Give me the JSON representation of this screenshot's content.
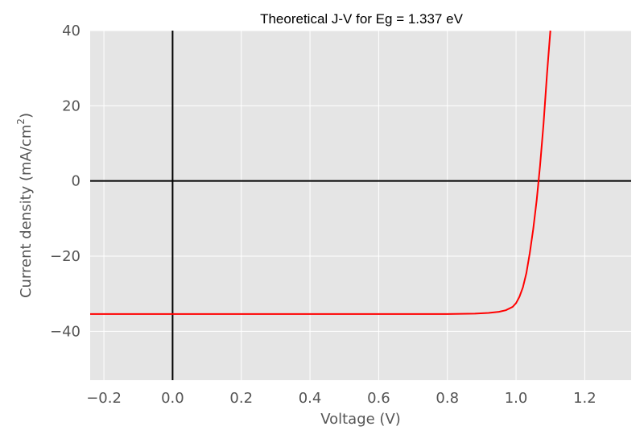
{
  "chart_data": {
    "type": "line",
    "title": "Theoretical J-V for Eg = 1.337 eV",
    "xlabel": "Voltage (V)",
    "ylabel_main": "Current density (mA/cm",
    "ylabel_sup": "2",
    "ylabel_close": ")",
    "xlim": [
      -0.24,
      1.335
    ],
    "ylim": [
      -53,
      40
    ],
    "xticks": [
      -0.2,
      0.0,
      0.2,
      0.4,
      0.6,
      0.8,
      1.0,
      1.2
    ],
    "xtick_labels": [
      "−0.2",
      "0.0",
      "0.2",
      "0.4",
      "0.6",
      "0.8",
      "1.0",
      "1.2"
    ],
    "yticks": [
      -40,
      -20,
      0,
      20,
      40
    ],
    "ytick_labels": [
      "−40",
      "−20",
      "0",
      "20",
      "40"
    ],
    "grid": true,
    "reference_lines": {
      "horizontal": 0,
      "vertical": 0,
      "color": "#000000"
    },
    "background": "#e5e5e5",
    "series": [
      {
        "color": "#ff0000",
        "x": [
          -0.24,
          0.0,
          0.2,
          0.4,
          0.6,
          0.8,
          0.88,
          0.92,
          0.95,
          0.97,
          0.99,
          1.0,
          1.01,
          1.02,
          1.03,
          1.04,
          1.05,
          1.06,
          1.07,
          1.08,
          1.09,
          1.1
        ],
        "y": [
          -35.4,
          -35.4,
          -35.4,
          -35.4,
          -35.4,
          -35.4,
          -35.3,
          -35.1,
          -34.8,
          -34.4,
          -33.5,
          -32.5,
          -30.8,
          -28.3,
          -24.5,
          -19.2,
          -12.8,
          -5.1,
          4.1,
          15.2,
          28.4,
          40.0
        ]
      }
    ]
  }
}
